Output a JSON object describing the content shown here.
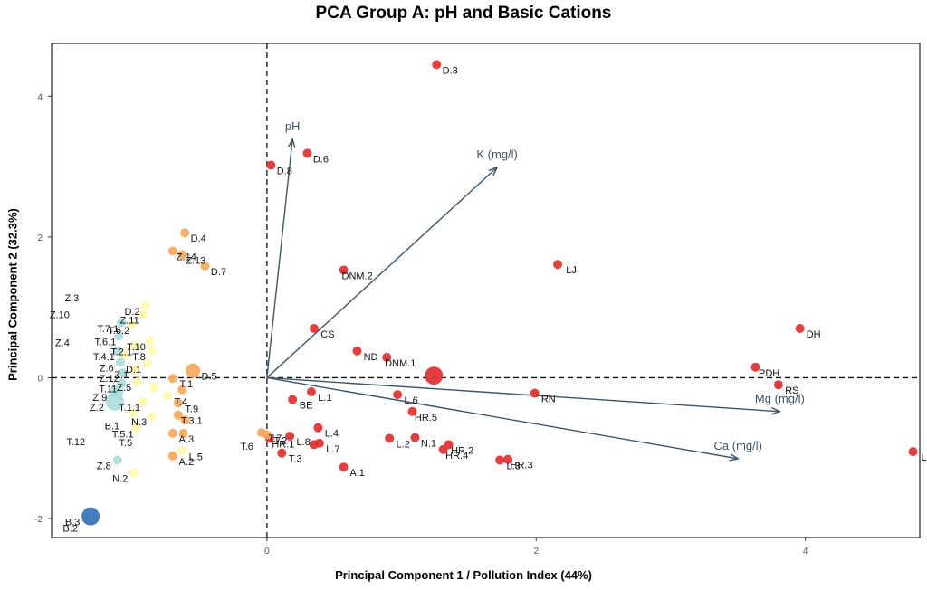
{
  "chart_data": {
    "type": "scatter",
    "title": "PCA Group A: pH and Basic Cations",
    "xlabel": "Principal Component 1 / Pollution Index (44%)",
    "ylabel": "Principal Component 2 (32.3%)",
    "xlim": [
      -1.6,
      4.85
    ],
    "ylim": [
      -2.27,
      4.75
    ],
    "xticks": [
      0,
      2,
      4
    ],
    "yticks": [
      -2,
      0,
      2,
      4
    ],
    "reference_lines": {
      "x": 0,
      "y": 0,
      "style": "dashed"
    },
    "grid": false,
    "colors": {
      "red": "#e03030",
      "orange": "#f6a95d",
      "yellow": "#fdfbb0",
      "cyan": "#addcdc",
      "blue": "#3373b3",
      "vector": "#3d5468"
    },
    "loadings": [
      {
        "label": "pH",
        "x": 0.19,
        "y": 3.39
      },
      {
        "label": "K (mg/l)",
        "x": 1.71,
        "y": 2.99
      },
      {
        "label": "Mg (mg/l)",
        "x": 3.81,
        "y": -0.48
      },
      {
        "label": "Ca (mg/l)",
        "x": 3.5,
        "y": -1.15
      }
    ],
    "points": [
      {
        "label": "D.3",
        "x": 1.26,
        "y": 4.45,
        "color": "red",
        "size": 5
      },
      {
        "label": "D.6",
        "x": 0.3,
        "y": 3.19,
        "color": "red",
        "size": 5
      },
      {
        "label": "D.8",
        "x": 0.03,
        "y": 3.02,
        "color": "red",
        "size": 5
      },
      {
        "label": "LJ",
        "x": 2.16,
        "y": 1.61,
        "color": "red",
        "size": 5
      },
      {
        "label": "DNM.2",
        "x": 0.57,
        "y": 1.53,
        "color": "red",
        "size": 5
      },
      {
        "label": "CS",
        "x": 0.35,
        "y": 0.7,
        "color": "red",
        "size": 5
      },
      {
        "label": "DH",
        "x": 3.96,
        "y": 0.7,
        "color": "red",
        "size": 5
      },
      {
        "label": "ND",
        "x": 0.67,
        "y": 0.38,
        "color": "red",
        "size": 5
      },
      {
        "label": "DNM.1",
        "x": 0.89,
        "y": 0.29,
        "color": "red",
        "size": 5
      },
      {
        "label": "PDH",
        "x": 3.63,
        "y": 0.15,
        "color": "red",
        "size": 5
      },
      {
        "label": "",
        "x": 1.24,
        "y": 0.03,
        "color": "red",
        "size": 10
      },
      {
        "label": "RS",
        "x": 3.8,
        "y": -0.1,
        "color": "red",
        "size": 5
      },
      {
        "label": "L.1",
        "x": 0.33,
        "y": -0.2,
        "color": "red",
        "size": 5
      },
      {
        "label": "L.6",
        "x": 0.97,
        "y": -0.24,
        "color": "red",
        "size": 5
      },
      {
        "label": "RN",
        "x": 1.99,
        "y": -0.22,
        "color": "red",
        "size": 5
      },
      {
        "label": "BE",
        "x": 0.19,
        "y": -0.31,
        "color": "red",
        "size": 5
      },
      {
        "label": "HR.5",
        "x": 1.08,
        "y": -0.48,
        "color": "red",
        "size": 5
      },
      {
        "label": "L.4",
        "x": 0.38,
        "y": -0.71,
        "color": "red",
        "size": 5
      },
      {
        "label": "L.8",
        "x": 0.17,
        "y": -0.83,
        "color": "red",
        "size": 5
      },
      {
        "label": "L.7",
        "x": 0.39,
        "y": -0.93,
        "color": "red",
        "size": 5
      },
      {
        "label": "",
        "x": 0.35,
        "y": -0.95,
        "color": "red",
        "size": 5
      },
      {
        "label": "T.3",
        "x": 0.11,
        "y": -1.07,
        "color": "red",
        "size": 5
      },
      {
        "label": "L.2",
        "x": 0.91,
        "y": -0.86,
        "color": "red",
        "size": 5
      },
      {
        "label": "N.1",
        "x": 1.1,
        "y": -0.85,
        "color": "red",
        "size": 5
      },
      {
        "label": "HR.2",
        "x": 1.35,
        "y": -0.95,
        "color": "red",
        "size": 5
      },
      {
        "label": "HR.4",
        "x": 1.31,
        "y": -1.02,
        "color": "red",
        "size": 5
      },
      {
        "label": "HR.3",
        "x": 1.79,
        "y": -1.16,
        "color": "red",
        "size": 5
      },
      {
        "label": "L.3",
        "x": 1.73,
        "y": -1.17,
        "color": "red",
        "size": 5
      },
      {
        "label": "A.1",
        "x": 0.57,
        "y": -1.27,
        "color": "red",
        "size": 5
      },
      {
        "label": "LL",
        "x": 4.8,
        "y": -1.05,
        "color": "red",
        "size": 5
      },
      {
        "label": "HR.1",
        "x": 0.02,
        "y": -0.86,
        "color": "red",
        "size": 5
      },
      {
        "label": "D.4",
        "x": -0.61,
        "y": 2.06,
        "color": "orange",
        "size": 5
      },
      {
        "label": "Z.14",
        "x": -0.7,
        "y": 1.8,
        "color": "orange",
        "size": 5
      },
      {
        "label": "Z.13",
        "x": -0.63,
        "y": 1.75,
        "color": "orange",
        "size": 5
      },
      {
        "label": "D.7",
        "x": -0.46,
        "y": 1.59,
        "color": "orange",
        "size": 5
      },
      {
        "label": "D.5",
        "x": -0.55,
        "y": 0.1,
        "color": "orange",
        "size": 8
      },
      {
        "label": "T.1",
        "x": -0.7,
        "y": -0.01,
        "color": "orange",
        "size": 5
      },
      {
        "label": "",
        "x": -0.63,
        "y": -0.17,
        "color": "orange",
        "size": 5
      },
      {
        "label": "T.9",
        "x": -0.66,
        "y": -0.36,
        "color": "orange",
        "size": 5
      },
      {
        "label": "T.3.1",
        "x": -0.66,
        "y": -0.53,
        "color": "orange",
        "size": 5
      },
      {
        "label": "",
        "x": -0.61,
        "y": -0.6,
        "color": "orange",
        "size": 5
      },
      {
        "label": "A.3",
        "x": -0.7,
        "y": -0.79,
        "color": "orange",
        "size": 5
      },
      {
        "label": "",
        "x": -0.62,
        "y": -0.79,
        "color": "orange",
        "size": 5
      },
      {
        "label": "A.2",
        "x": -0.7,
        "y": -1.11,
        "color": "orange",
        "size": 5
      },
      {
        "label": "T.7",
        "x": -0.04,
        "y": -0.78,
        "color": "orange",
        "size": 5
      },
      {
        "label": "T.2",
        "x": 0.0,
        "y": -0.81,
        "color": "orange",
        "size": 5
      },
      {
        "label": "D.2",
        "x": -0.9,
        "y": 1.02,
        "color": "yellow",
        "size": 5
      },
      {
        "label": "Z.11",
        "x": -0.92,
        "y": 0.9,
        "color": "yellow",
        "size": 5
      },
      {
        "label": "T.6.2",
        "x": -1.0,
        "y": 0.75,
        "color": "yellow",
        "size": 5
      },
      {
        "label": "T.10",
        "x": -0.87,
        "y": 0.52,
        "color": "yellow",
        "size": 5
      },
      {
        "label": "T.2.1",
        "x": -0.98,
        "y": 0.45,
        "color": "yellow",
        "size": 5
      },
      {
        "label": "T.8",
        "x": -0.85,
        "y": 0.38,
        "color": "yellow",
        "size": 5
      },
      {
        "label": "",
        "x": -1.06,
        "y": 0.32,
        "color": "yellow",
        "size": 5
      },
      {
        "label": "D.1",
        "x": -0.89,
        "y": 0.2,
        "color": "yellow",
        "size": 5
      },
      {
        "label": "Z.1",
        "x": -0.98,
        "y": 0.12,
        "color": "yellow",
        "size": 5
      },
      {
        "label": "Z.5",
        "x": -0.96,
        "y": -0.06,
        "color": "yellow",
        "size": 5
      },
      {
        "label": "",
        "x": -0.84,
        "y": -0.14,
        "color": "yellow",
        "size": 5
      },
      {
        "label": "T.4",
        "x": -0.74,
        "y": -0.26,
        "color": "yellow",
        "size": 5
      },
      {
        "label": "T.1.1",
        "x": -0.92,
        "y": -0.34,
        "color": "yellow",
        "size": 5
      },
      {
        "label": "N.3",
        "x": -0.85,
        "y": -0.55,
        "color": "yellow",
        "size": 5
      },
      {
        "label": "",
        "x": -0.99,
        "y": -0.5,
        "color": "yellow",
        "size": 5
      },
      {
        "label": "T.5.1",
        "x": -0.97,
        "y": -0.72,
        "color": "yellow",
        "size": 5
      },
      {
        "label": "L.5",
        "x": -0.63,
        "y": -1.04,
        "color": "yellow",
        "size": 5
      },
      {
        "label": "N.2",
        "x": -0.99,
        "y": -1.35,
        "color": "yellow",
        "size": 5
      },
      {
        "label": "T.7.1",
        "x": -1.08,
        "y": 0.78,
        "color": "cyan",
        "size": 5
      },
      {
        "label": "T.6.1",
        "x": -1.1,
        "y": 0.59,
        "color": "cyan",
        "size": 5
      },
      {
        "label": "T.4.1",
        "x": -1.11,
        "y": 0.38,
        "color": "cyan",
        "size": 5
      },
      {
        "label": "Z.6",
        "x": -1.09,
        "y": 0.22,
        "color": "cyan",
        "size": 5
      },
      {
        "label": "Z.12",
        "x": -1.07,
        "y": 0.07,
        "color": "cyan",
        "size": 5
      },
      {
        "label": "T.11",
        "x": -1.08,
        "y": -0.08,
        "color": "cyan",
        "size": 5
      },
      {
        "label": "Z.9",
        "x": -1.12,
        "y": -0.2,
        "color": "cyan",
        "size": 8
      },
      {
        "label": "Z.2",
        "x": -1.13,
        "y": -0.34,
        "color": "cyan",
        "size": 10
      },
      {
        "label": "Z.8",
        "x": -1.11,
        "y": -1.17,
        "color": "cyan",
        "size": 5
      },
      {
        "label": "B.3",
        "x": -1.31,
        "y": -1.97,
        "color": "blue",
        "size": 10
      },
      {
        "label": "B.2",
        "x": -1.36,
        "y": -2.06,
        "color": "blue",
        "size": 0
      }
    ],
    "extra_labels": [
      {
        "label": "Z.3",
        "x": -1.45,
        "y": 1.14
      },
      {
        "label": "Z.10",
        "x": -1.54,
        "y": 0.9
      },
      {
        "label": "Z.4",
        "x": -1.52,
        "y": 0.5
      },
      {
        "label": "T.6",
        "x": -0.15,
        "y": -0.97
      },
      {
        "label": "B.1",
        "x": -1.15,
        "y": -0.68
      },
      {
        "label": "T.12",
        "x": -1.42,
        "y": -0.91
      },
      {
        "label": "T.5",
        "x": -1.05,
        "y": -0.92
      }
    ]
  }
}
